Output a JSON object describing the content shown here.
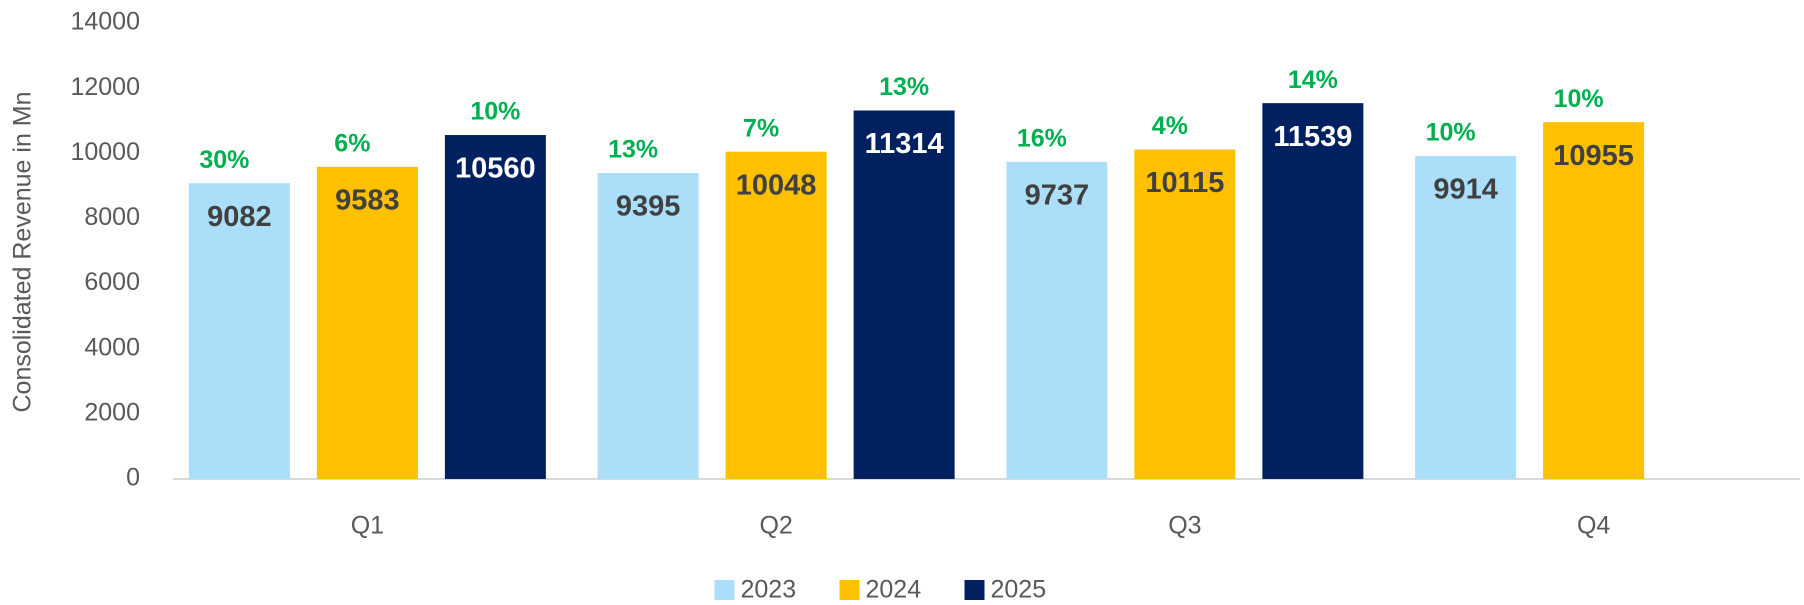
{
  "chart_data": {
    "type": "bar",
    "y_label": "Consolidated Revenue in Mn",
    "categories": [
      "Q1",
      "Q2",
      "Q3",
      "Q4"
    ],
    "series": [
      {
        "name": "2023",
        "color": "#abdff9",
        "label_color": "#404040",
        "values": [
          9082,
          9395,
          9737,
          9914
        ],
        "growth_labels": [
          "30%",
          "13%",
          "16%",
          "10%"
        ]
      },
      {
        "name": "2024",
        "color": "#ffc000",
        "label_color": "#404040",
        "values": [
          9583,
          10048,
          10115,
          10955
        ],
        "growth_labels": [
          "6%",
          "7%",
          "4%",
          "10%"
        ]
      },
      {
        "name": "2025",
        "color": "#002060",
        "label_color": "#ffffff",
        "values": [
          10560,
          11314,
          11539,
          null
        ],
        "growth_labels": [
          "10%",
          "13%",
          "14%",
          null
        ]
      }
    ],
    "growth_color": "#00b050",
    "ylim": [
      0,
      14000
    ],
    "yticks": [
      0,
      2000,
      4000,
      6000,
      8000,
      10000,
      12000,
      14000
    ],
    "grid": false
  }
}
